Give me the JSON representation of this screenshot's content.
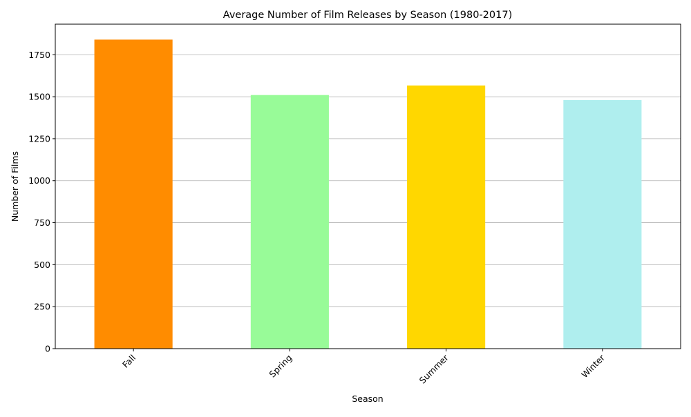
{
  "chart_data": {
    "type": "bar",
    "title": "Average Number of Film Releases by Season (1980-2017)",
    "xlabel": "Season",
    "ylabel": "Number of Films",
    "categories": [
      "Fall",
      "Spring",
      "Summer",
      "Winter"
    ],
    "values": [
      1840,
      1510,
      1567,
      1480
    ],
    "colors": [
      "#ff8c00",
      "#98fb98",
      "#ffd700",
      "#afeeee"
    ],
    "ylim": [
      0,
      1932
    ],
    "yticks": [
      0,
      250,
      500,
      750,
      1000,
      1250,
      1500,
      1750
    ],
    "grid": "y",
    "grid_color": "#b0b0b0",
    "xtick_rotation": 45
  }
}
